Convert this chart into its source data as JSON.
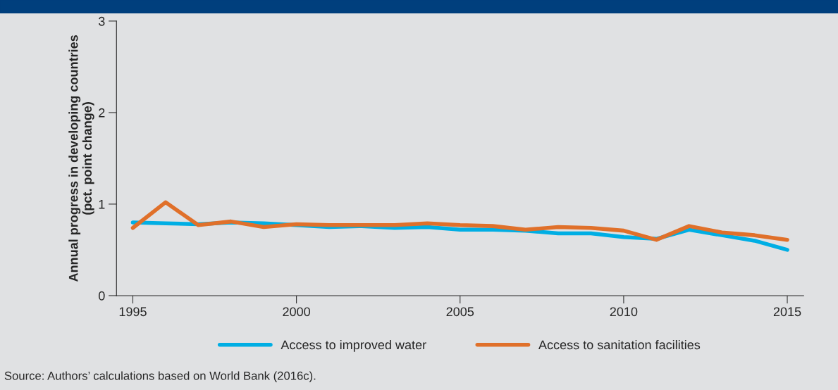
{
  "chart_data": {
    "type": "line",
    "ylabel": "Annual progress in developing countries\n(pct. point change)",
    "x": [
      1995,
      1996,
      1997,
      1998,
      1999,
      2000,
      2001,
      2002,
      2003,
      2004,
      2005,
      2006,
      2007,
      2008,
      2009,
      2010,
      2011,
      2012,
      2013,
      2014,
      2015
    ],
    "series": [
      {
        "name": "Access to improved water",
        "color": "#00aee4",
        "values": [
          0.8,
          0.79,
          0.78,
          0.8,
          0.79,
          0.77,
          0.75,
          0.76,
          0.74,
          0.75,
          0.72,
          0.72,
          0.71,
          0.68,
          0.68,
          0.64,
          0.62,
          0.72,
          0.66,
          0.6,
          0.5
        ]
      },
      {
        "name": "Access to sanitation facilities",
        "color": "#e0702a",
        "values": [
          0.74,
          1.02,
          0.77,
          0.81,
          0.75,
          0.78,
          0.77,
          0.77,
          0.77,
          0.79,
          0.77,
          0.76,
          0.72,
          0.75,
          0.74,
          0.71,
          0.61,
          0.76,
          0.69,
          0.66,
          0.61
        ]
      }
    ],
    "xlim": [
      1994.5,
      2015.5
    ],
    "ylim": [
      0,
      3
    ],
    "xticks": [
      1995,
      2000,
      2005,
      2010,
      2015
    ],
    "yticks": [
      0,
      1,
      2,
      3
    ],
    "grid": false,
    "legend": "bottom",
    "line_style": "solid",
    "marker": "none",
    "annotations": [
      "Source: Authors’ calculations based on World Bank (2016c)."
    ]
  }
}
